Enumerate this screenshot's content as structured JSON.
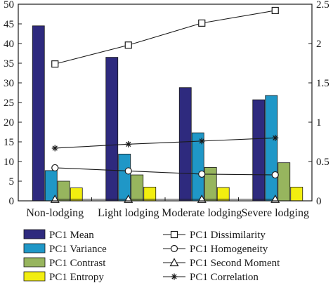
{
  "chart_data": {
    "type": "bar",
    "categories": [
      "Non-lodging",
      "Light lodging",
      "Moderate lodging",
      "Severe lodging"
    ],
    "axes": {
      "left": {
        "min": 0,
        "max": 50,
        "ticks": [
          0,
          5,
          10,
          15,
          20,
          25,
          30,
          35,
          40,
          45,
          50
        ]
      },
      "right": {
        "min": 0,
        "max": 2.5,
        "ticks": [
          "0",
          "0.5",
          "1",
          "1.5",
          "2",
          "2.5"
        ],
        "tick_values": [
          0,
          0.5,
          1,
          1.5,
          2,
          2.5
        ]
      }
    },
    "grid": false,
    "legend_position": "bottom",
    "bar_series": [
      {
        "name": "PC1 Mean",
        "color": "#2e2a7e",
        "axis": "left",
        "values": [
          44.5,
          36.5,
          28.8,
          25.7
        ]
      },
      {
        "name": "PC1 Variance",
        "color": "#1f97c7",
        "axis": "left",
        "values": [
          7.7,
          11.9,
          17.3,
          26.8
        ]
      },
      {
        "name": "PC1 Contrast",
        "color": "#97b55e",
        "axis": "left",
        "values": [
          5.0,
          6.6,
          8.5,
          9.7
        ]
      },
      {
        "name": "PC1 Entropy",
        "color": "#f2ee10",
        "axis": "left",
        "values": [
          3.3,
          3.5,
          3.4,
          3.5
        ]
      }
    ],
    "line_series": [
      {
        "name": "PC1 Dissimilarity",
        "marker": "square",
        "axis": "right",
        "values": [
          1.74,
          1.98,
          2.26,
          2.42
        ]
      },
      {
        "name": "PC1 Homogeneity",
        "marker": "circle",
        "axis": "right",
        "values": [
          0.42,
          0.38,
          0.34,
          0.33
        ]
      },
      {
        "name": "PC1 Second Moment",
        "marker": "triangle",
        "axis": "right",
        "values": [
          0.02,
          0.02,
          0.02,
          0.02
        ]
      },
      {
        "name": "PC1 Correlation",
        "marker": "asterisk",
        "axis": "right",
        "values": [
          0.67,
          0.72,
          0.76,
          0.8
        ]
      }
    ]
  }
}
